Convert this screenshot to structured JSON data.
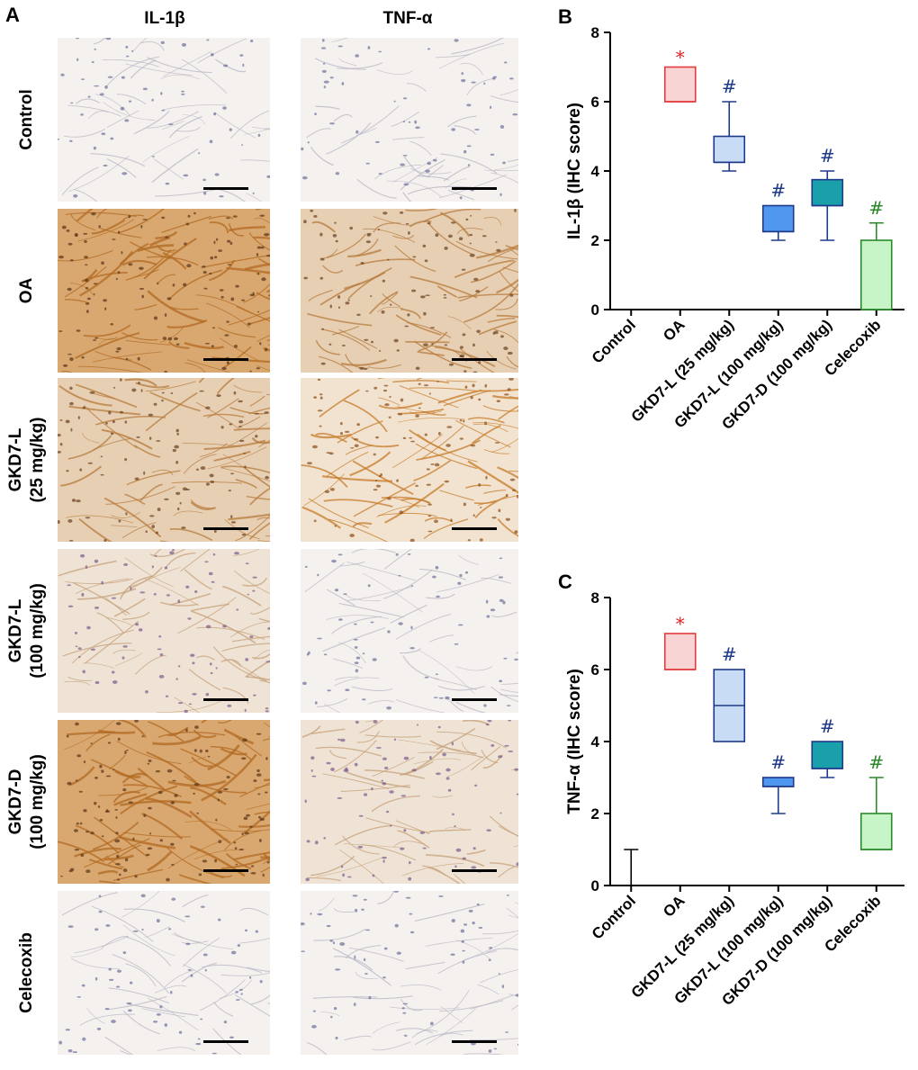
{
  "figure": {
    "panel_a_letter": "A",
    "columns": [
      "IL-1β",
      "TNF-α"
    ],
    "rows": [
      {
        "label_lines": [
          "Control"
        ],
        "il1b_stain": "light",
        "tnfa_stain": "light"
      },
      {
        "label_lines": [
          "OA"
        ],
        "il1b_stain": "dense-brown",
        "tnfa_stain": "brown"
      },
      {
        "label_lines": [
          "GKD7-L",
          "(25 mg/kg)"
        ],
        "il1b_stain": "brown",
        "tnfa_stain": "brown-strong"
      },
      {
        "label_lines": [
          "GKD7-L",
          "(100 mg/kg)"
        ],
        "il1b_stain": "light-brown",
        "tnfa_stain": "light"
      },
      {
        "label_lines": [
          "GKD7-D",
          "(100 mg/kg)"
        ],
        "il1b_stain": "dense-brown",
        "tnfa_stain": "light-brown"
      },
      {
        "label_lines": [
          "Celecoxib"
        ],
        "il1b_stain": "light",
        "tnfa_stain": "light"
      }
    ]
  },
  "chart_data": [
    {
      "type": "box",
      "panel_letter": "B",
      "title": "",
      "ylabel": "IL-1β (IHC score)",
      "xlabel": "",
      "ylim": [
        0,
        8
      ],
      "yticks": [
        0,
        2,
        4,
        6,
        8
      ],
      "categories": [
        "Control",
        "OA",
        "GKD7-L (25 mg/kg)",
        "GKD7-L (100 mg/kg)",
        "GKD7-D (100 mg/kg)",
        "Celecoxib"
      ],
      "boxes": [
        {
          "category": "Control",
          "min": 0,
          "q1": 0,
          "median": 0,
          "q3": 0,
          "max": 0,
          "fill": "#ffffff",
          "stroke": "#000000",
          "mark": "",
          "mark_color": ""
        },
        {
          "category": "OA",
          "min": 6,
          "q1": 6,
          "median": 6,
          "q3": 7,
          "max": 7,
          "fill": "#f9d4d4",
          "stroke": "#e23b3b",
          "mark": "*",
          "mark_color": "#e02020"
        },
        {
          "category": "GKD7-L (25 mg/kg)",
          "min": 4,
          "q1": 4.25,
          "median": 4.25,
          "q3": 5,
          "max": 6,
          "fill": "#c9dcf5",
          "stroke": "#1f3a8a",
          "mark": "#",
          "mark_color": "#1f3a8a"
        },
        {
          "category": "GKD7-L (100 mg/kg)",
          "min": 2,
          "q1": 2.25,
          "median": 2.25,
          "q3": 3,
          "max": 3,
          "fill": "#4f97ef",
          "stroke": "#1f3a8a",
          "mark": "#",
          "mark_color": "#1f3a8a"
        },
        {
          "category": "GKD7-D (100 mg/kg)",
          "min": 2,
          "q1": 3,
          "median": 3,
          "q3": 3.75,
          "max": 4,
          "fill": "#1aa0aa",
          "stroke": "#1f3a8a",
          "mark": "#",
          "mark_color": "#1f3a8a"
        },
        {
          "category": "Celecoxib",
          "min": 0,
          "q1": 0,
          "median": 0,
          "q3": 2,
          "max": 2.5,
          "fill": "#c8f5c8",
          "stroke": "#2a8a2a",
          "mark": "#",
          "mark_color": "#2a8a2a"
        }
      ]
    },
    {
      "type": "box",
      "panel_letter": "C",
      "title": "",
      "ylabel": "TNF-α (IHC score)",
      "xlabel": "",
      "ylim": [
        0,
        8
      ],
      "yticks": [
        0,
        2,
        4,
        6,
        8
      ],
      "categories": [
        "Control",
        "OA",
        "GKD7-L (25 mg/kg)",
        "GKD7-L (100 mg/kg)",
        "GKD7-D (100 mg/kg)",
        "Celecoxib"
      ],
      "boxes": [
        {
          "category": "Control",
          "min": 0,
          "q1": 0,
          "median": 0,
          "q3": 0,
          "max": 1,
          "fill": "#ffffff",
          "stroke": "#000000",
          "mark": "",
          "mark_color": ""
        },
        {
          "category": "OA",
          "min": 6,
          "q1": 6,
          "median": 6,
          "q3": 7,
          "max": 7,
          "fill": "#f9d4d4",
          "stroke": "#e23b3b",
          "mark": "*",
          "mark_color": "#e02020"
        },
        {
          "category": "GKD7-L (25 mg/kg)",
          "min": 4,
          "q1": 4,
          "median": 5,
          "q3": 6,
          "max": 6,
          "fill": "#c9dcf5",
          "stroke": "#1f3a8a",
          "mark": "#",
          "mark_color": "#1f3a8a"
        },
        {
          "category": "GKD7-L (100 mg/kg)",
          "min": 2,
          "q1": 2.75,
          "median": 2.75,
          "q3": 3,
          "max": 3,
          "fill": "#4f97ef",
          "stroke": "#1f3a8a",
          "mark": "#",
          "mark_color": "#1f3a8a"
        },
        {
          "category": "GKD7-D (100 mg/kg)",
          "min": 3,
          "q1": 3.25,
          "median": 3.25,
          "q3": 4,
          "max": 4,
          "fill": "#1aa0aa",
          "stroke": "#1f3a8a",
          "mark": "#",
          "mark_color": "#1f3a8a"
        },
        {
          "category": "Celecoxib",
          "min": 1,
          "q1": 1,
          "median": 1,
          "q3": 2,
          "max": 3,
          "fill": "#c8f5c8",
          "stroke": "#2a8a2a",
          "mark": "#",
          "mark_color": "#2a8a2a"
        }
      ]
    }
  ]
}
